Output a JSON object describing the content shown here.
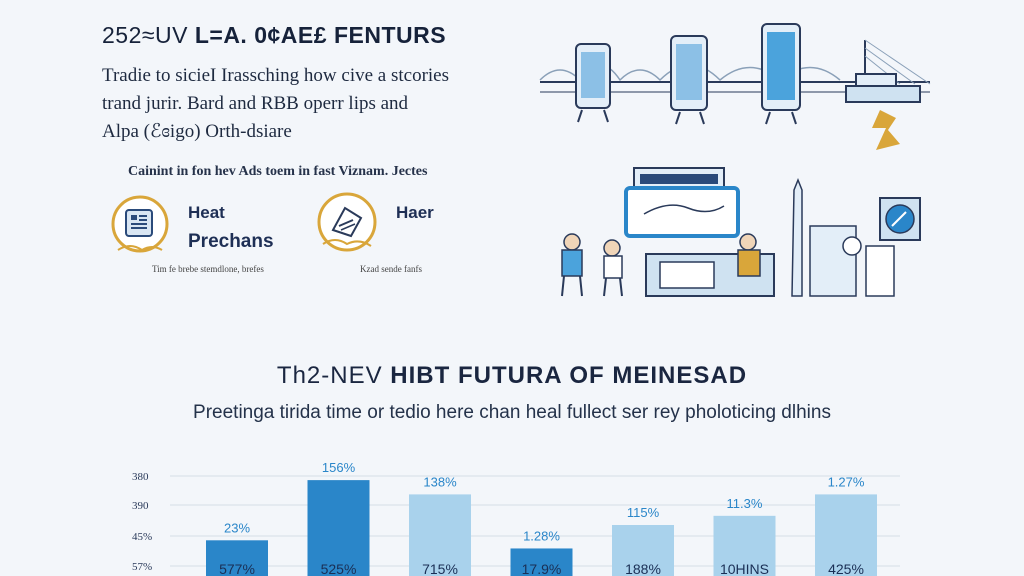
{
  "header": {
    "title_prefix": "252≈UV",
    "title_bold": "L=A. 0¢AE£",
    "title_suffix": "FENTURS"
  },
  "intro": {
    "lines": [
      "Tradie to sicieI Irassching how cive a stcories",
      "trand jurir. Bard and RBB operr lips and",
      "Alpa (ℰɞigo) Orth-dsiare"
    ]
  },
  "caption": "Cainint in fon hev Ads toem in fast Viznam. Jectes",
  "badges": [
    {
      "title_line1": "Heat",
      "title_line2": "Prechans",
      "sub": "Tim fe brebe stemdlone, brefes",
      "icon": "tablet-icon"
    },
    {
      "title_line1": "Haer",
      "title_line2": "",
      "sub": "Kzad sende fanfs",
      "icon": "certificate-icon"
    }
  ],
  "section": {
    "title_prefix": "Th2-NEV",
    "title_bold": "HIBT FUTURA OF MEINESAD",
    "subtitle": "Preetinga tirida time or tedio here chan heal fullect ser rey pholoticing dlhins"
  },
  "colors": {
    "accent_dark": "#2a86c9",
    "accent_mid": "#4ba3dc",
    "accent_light": "#a9d2ec",
    "gold": "#d9a63a",
    "text": "#1a2640"
  },
  "chart_data": {
    "type": "bar",
    "y_tick_labels": [
      "380",
      "390",
      "45%",
      "57%"
    ],
    "bars": [
      {
        "top_label": "23%",
        "bottom_label": "577%",
        "value": 35,
        "shade": "dark"
      },
      {
        "top_label": "156%",
        "bottom_label": "525%",
        "value": 94,
        "shade": "dark"
      },
      {
        "top_label": "138%",
        "bottom_label": "715%",
        "value": 80,
        "shade": "light"
      },
      {
        "top_label": "1.28%",
        "bottom_label": "17.9%",
        "value": 27,
        "shade": "dark"
      },
      {
        "top_label": "115%",
        "bottom_label": "188%",
        "value": 50,
        "shade": "light"
      },
      {
        "top_label": "11.3%",
        "bottom_label": "10HINS",
        "value": 59,
        "shade": "light"
      },
      {
        "top_label": "1.27%",
        "bottom_label": "425%",
        "value": 80,
        "shade": "light"
      }
    ],
    "ylim": [
      0,
      100
    ],
    "grid": true
  }
}
